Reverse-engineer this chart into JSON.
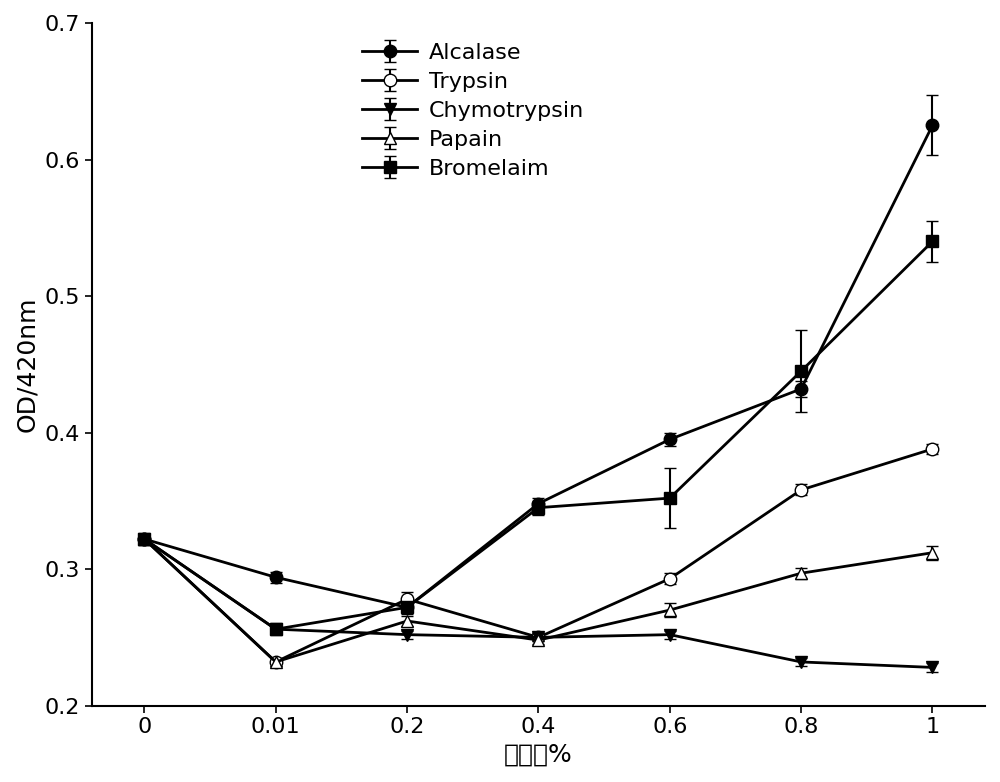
{
  "x_indices": [
    0,
    1,
    2,
    3,
    4,
    5,
    6
  ],
  "xticklabels": [
    "0",
    "0.01",
    "0.2",
    "0.4",
    "0.6",
    "0.8",
    "1"
  ],
  "series": {
    "Alcalase": {
      "y": [
        0.322,
        0.294,
        0.272,
        0.348,
        0.395,
        0.432,
        0.625
      ],
      "yerr": [
        0.004,
        0.004,
        0.003,
        0.004,
        0.005,
        0.006,
        0.022
      ],
      "marker": "o",
      "fillstyle": "full"
    },
    "Trypsin": {
      "y": [
        0.322,
        0.232,
        0.278,
        0.25,
        0.293,
        0.358,
        0.388
      ],
      "yerr": [
        0.003,
        0.003,
        0.005,
        0.003,
        0.004,
        0.004,
        0.004
      ],
      "marker": "o",
      "fillstyle": "none"
    },
    "Chymotrypsin": {
      "y": [
        0.322,
        0.256,
        0.252,
        0.25,
        0.252,
        0.232,
        0.228
      ],
      "yerr": [
        0.003,
        0.003,
        0.003,
        0.003,
        0.003,
        0.003,
        0.003
      ],
      "marker": "v",
      "fillstyle": "full"
    },
    "Papain": {
      "y": [
        0.322,
        0.232,
        0.262,
        0.248,
        0.27,
        0.297,
        0.312
      ],
      "yerr": [
        0.003,
        0.003,
        0.004,
        0.003,
        0.005,
        0.004,
        0.005
      ],
      "marker": "^",
      "fillstyle": "none"
    },
    "Bromelaim": {
      "y": [
        0.322,
        0.256,
        0.272,
        0.345,
        0.352,
        0.445,
        0.54
      ],
      "yerr": [
        0.003,
        0.004,
        0.005,
        0.005,
        0.022,
        0.03,
        0.015
      ],
      "marker": "s",
      "fillstyle": "full"
    }
  },
  "xlabel": "水解度%",
  "ylabel": "OD/420nm",
  "ylim": [
    0.2,
    0.7
  ],
  "yticks": [
    0.2,
    0.3,
    0.4,
    0.5,
    0.6,
    0.7
  ],
  "legend_order": [
    "Alcalase",
    "Trypsin",
    "Chymotrypsin",
    "Papain",
    "Bromelaim"
  ],
  "fontsize_label": 18,
  "fontsize_tick": 16,
  "fontsize_legend": 16,
  "linewidth": 2.0,
  "markersize": 9,
  "capsize": 4,
  "elinewidth": 1.5,
  "color": "black"
}
